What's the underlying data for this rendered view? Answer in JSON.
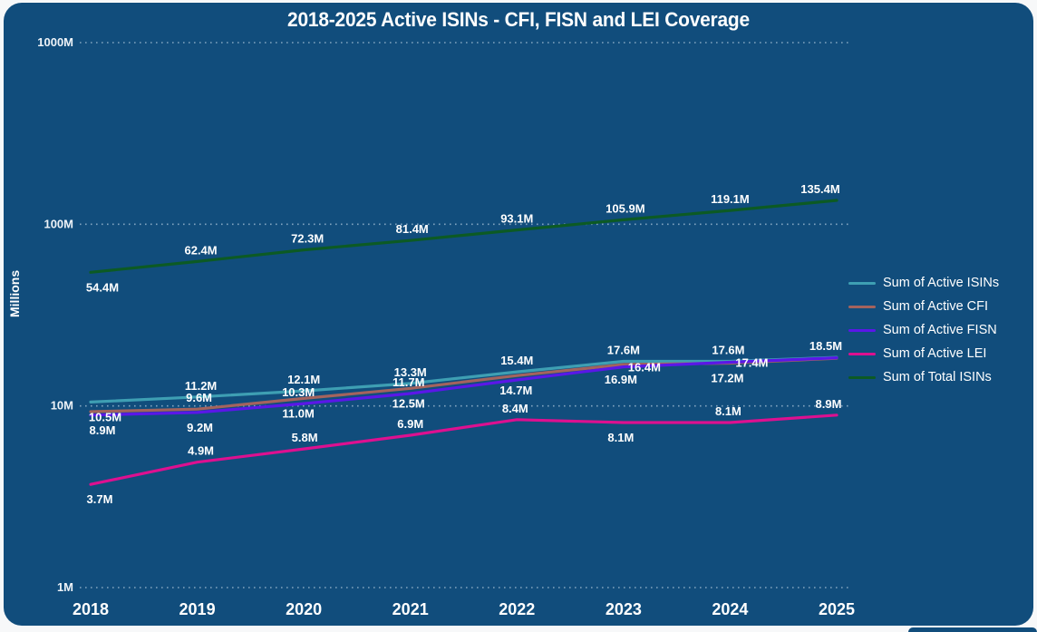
{
  "title": "2018-2025 Active ISINs - CFI, FISN and LEI Coverage",
  "colors": {
    "card_background": "#114D7C",
    "gridline": "rgba(222,235,246,0.55)",
    "text": "#FFFFFF"
  },
  "y_axis": {
    "title": "Millions",
    "scale": "log",
    "ticks": [
      {
        "label": "1M",
        "value": 1
      },
      {
        "label": "10M",
        "value": 10
      },
      {
        "label": "100M",
        "value": 100
      },
      {
        "label": "1000M",
        "value": 1000
      }
    ]
  },
  "x_axis": {
    "ticks": [
      "2018",
      "2019",
      "2020",
      "2021",
      "2022",
      "2023",
      "2024",
      "2025"
    ]
  },
  "legend": [
    {
      "label": "Sum of Active ISINs",
      "color": "#3E9FB3"
    },
    {
      "label": "Sum of Active CFI",
      "color": "#A4635D"
    },
    {
      "label": "Sum of Active FISN",
      "color": "#5A17E8"
    },
    {
      "label": "Sum of Active LEI",
      "color": "#DD1090"
    },
    {
      "label": "Sum of Total ISINs",
      "color": "#0C5A24"
    }
  ],
  "chart_data": {
    "type": "line",
    "x": [
      2018,
      2019,
      2020,
      2021,
      2022,
      2023,
      2024,
      2025
    ],
    "title": "2018-2025 Active ISINs - CFI, FISN and LEI Coverage",
    "xlabel": "",
    "ylabel": "Millions",
    "yscale": "log",
    "ylim_millions": [
      1,
      1000
    ],
    "grid": "dotted",
    "legend_position": "right",
    "series": [
      {
        "name": "Sum of Active ISINs",
        "color": "#3E9FB3",
        "values": [
          10.5,
          11.2,
          12.1,
          13.3,
          15.4,
          17.6,
          17.6,
          18.5
        ],
        "labels": [
          "10.5M",
          "11.2M",
          "12.1M",
          "13.3M",
          "15.4M",
          "17.6M",
          "17.6M",
          "18.5M"
        ],
        "label_layout": [
          {
            "pos": "below",
            "dx": 16
          },
          {
            "pos": "above",
            "dx": 4
          },
          {
            "pos": "above",
            "dx": 0
          },
          {
            "pos": "above",
            "dx": 0
          },
          {
            "pos": "above",
            "dx": 0
          },
          {
            "pos": "above",
            "dx": 0
          },
          {
            "pos": "above",
            "dx": -2
          },
          {
            "pos": "above",
            "dx": -12
          }
        ]
      },
      {
        "name": "Sum of Active CFI",
        "color": "#A4635D",
        "values": [
          9.3,
          9.6,
          11.0,
          12.5,
          14.7,
          16.9,
          17.2,
          18.3
        ],
        "labels": [
          null,
          "9.6M",
          "11.0M",
          "12.5M",
          "14.7M",
          "16.9M",
          "17.2M",
          null
        ],
        "label_layout": [
          null,
          {
            "pos": "above",
            "dx": 2
          },
          {
            "pos": "below",
            "dx": -6
          },
          {
            "pos": "below",
            "dx": -2
          },
          {
            "pos": "below",
            "dx": -1
          },
          {
            "pos": "below",
            "dx": -3
          },
          {
            "pos": "below",
            "dx": -3
          },
          null
        ]
      },
      {
        "name": "Sum of Active FISN",
        "color": "#5A17E8",
        "values": [
          8.9,
          9.2,
          10.3,
          11.7,
          13.9,
          16.4,
          17.4,
          18.4
        ],
        "labels": [
          "8.9M",
          "9.2M",
          "10.3M",
          "11.7M",
          null,
          "16.4M",
          "17.4M",
          null
        ],
        "label_layout": [
          {
            "pos": "below",
            "dx": 13
          },
          {
            "pos": "below",
            "dx": 3
          },
          {
            "pos": "above",
            "dx": -6
          },
          {
            "pos": "above",
            "dx": -2
          },
          null,
          {
            "pos": "on",
            "dx": 23
          },
          {
            "pos": "on",
            "dx": 24
          },
          null
        ]
      },
      {
        "name": "Sum of Active LEI",
        "color": "#DD1090",
        "values": [
          3.7,
          4.9,
          5.8,
          6.9,
          8.4,
          8.1,
          8.1,
          8.9
        ],
        "labels": [
          "3.7M",
          "4.9M",
          "5.8M",
          "6.9M",
          "8.4M",
          "8.1M",
          "8.1M",
          "8.9M"
        ],
        "label_layout": [
          {
            "pos": "below",
            "dx": 10
          },
          {
            "pos": "above",
            "dx": 4
          },
          {
            "pos": "above",
            "dx": 1
          },
          {
            "pos": "above",
            "dx": 0
          },
          {
            "pos": "above",
            "dx": -2
          },
          {
            "pos": "below",
            "dx": -3
          },
          {
            "pos": "above",
            "dx": -2
          },
          {
            "pos": "above",
            "dx": -9
          }
        ]
      },
      {
        "name": "Sum of Total ISINs",
        "color": "#0C5A24",
        "values": [
          54.4,
          62.4,
          72.3,
          81.4,
          93.1,
          105.9,
          119.1,
          135.4
        ],
        "labels": [
          "54.4M",
          "62.4M",
          "72.3M",
          "81.4M",
          "93.1M",
          "105.9M",
          "119.1M",
          "135.4M"
        ],
        "label_layout": [
          {
            "pos": "below",
            "dx": 13
          },
          {
            "pos": "above",
            "dx": 4
          },
          {
            "pos": "above",
            "dx": 4
          },
          {
            "pos": "above",
            "dx": 2
          },
          {
            "pos": "above",
            "dx": 0
          },
          {
            "pos": "above",
            "dx": 2
          },
          {
            "pos": "above",
            "dx": 0
          },
          {
            "pos": "above",
            "dx": -18
          }
        ]
      }
    ]
  }
}
